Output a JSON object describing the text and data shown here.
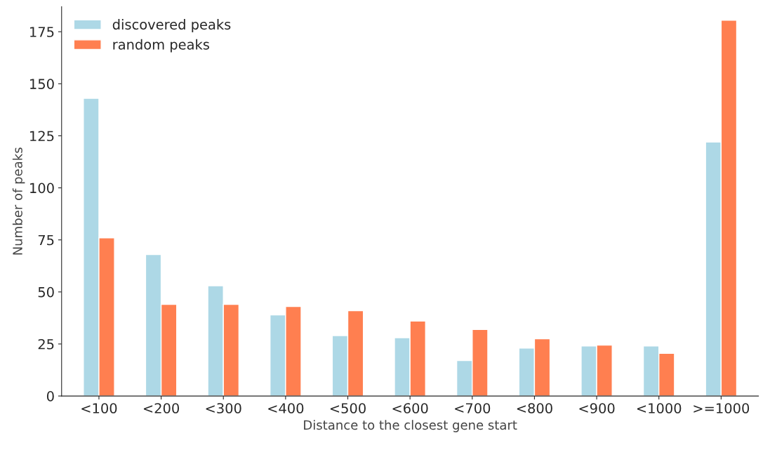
{
  "chart_data": {
    "type": "bar",
    "xlabel": "Distance to the closest gene start",
    "ylabel": "Number of peaks",
    "categories": [
      "<100",
      "<200",
      "<300",
      "<400",
      "<500",
      "<600",
      "<700",
      "<800",
      "<900",
      "<1000",
      ">=1000"
    ],
    "series": [
      {
        "name": "discovered peaks",
        "color": "#add8e6",
        "values": [
          143,
          68,
          53,
          39,
          29,
          28,
          17,
          23,
          24,
          24,
          122
        ]
      },
      {
        "name": "random peaks",
        "color": "#ff7f50",
        "values": [
          76,
          44,
          44,
          43,
          41,
          36,
          32,
          27.5,
          24.5,
          20.5,
          180.5
        ]
      }
    ],
    "ylim": [
      0,
      187
    ],
    "yticks": [
      0,
      25,
      50,
      75,
      100,
      125,
      150,
      175
    ],
    "grid": false,
    "legend": "top left"
  }
}
